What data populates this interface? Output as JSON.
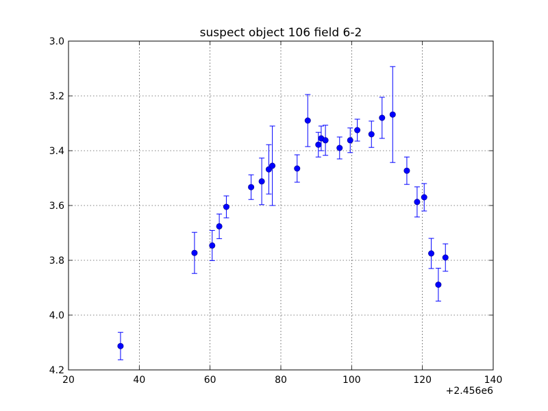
{
  "chart_data": {
    "type": "scatter",
    "title": "suspect object 106 field 6-2",
    "xlabel": "",
    "ylabel": "",
    "x_offset_label": "+2.456e6",
    "xlim": [
      20,
      140
    ],
    "ylim": [
      4.2,
      3.0
    ],
    "y_inverted": true,
    "grid": true,
    "x_ticks": [
      "20",
      "40",
      "60",
      "80",
      "100",
      "120",
      "140"
    ],
    "y_ticks": [
      "3.0",
      "3.2",
      "3.4",
      "3.6",
      "3.8",
      "4.0",
      "4.2"
    ],
    "x_tick_values": [
      20,
      40,
      60,
      80,
      100,
      120,
      140
    ],
    "y_tick_values": [
      3.0,
      3.2,
      3.4,
      3.6,
      3.8,
      4.0,
      4.2
    ],
    "series": [
      {
        "color": "#0000ff",
        "marker": "circle",
        "points": [
          {
            "x": 34.7,
            "y": 4.113,
            "err": 0.05
          },
          {
            "x": 55.6,
            "y": 3.773,
            "err": 0.075
          },
          {
            "x": 60.6,
            "y": 3.746,
            "err": 0.055
          },
          {
            "x": 62.6,
            "y": 3.676,
            "err": 0.045
          },
          {
            "x": 64.6,
            "y": 3.605,
            "err": 0.04
          },
          {
            "x": 71.6,
            "y": 3.533,
            "err": 0.045
          },
          {
            "x": 74.6,
            "y": 3.512,
            "err": 0.085
          },
          {
            "x": 76.6,
            "y": 3.468,
            "err": 0.09
          },
          {
            "x": 77.6,
            "y": 3.455,
            "err": 0.145
          },
          {
            "x": 84.6,
            "y": 3.465,
            "err": 0.05
          },
          {
            "x": 87.6,
            "y": 3.29,
            "err": 0.095
          },
          {
            "x": 90.6,
            "y": 3.378,
            "err": 0.045
          },
          {
            "x": 91.4,
            "y": 3.355,
            "err": 0.045
          },
          {
            "x": 92.6,
            "y": 3.362,
            "err": 0.055
          },
          {
            "x": 96.6,
            "y": 3.39,
            "err": 0.04
          },
          {
            "x": 99.6,
            "y": 3.362,
            "err": 0.045
          },
          {
            "x": 101.6,
            "y": 3.325,
            "err": 0.04
          },
          {
            "x": 105.6,
            "y": 3.34,
            "err": 0.048
          },
          {
            "x": 108.6,
            "y": 3.28,
            "err": 0.075
          },
          {
            "x": 111.6,
            "y": 3.268,
            "err": 0.175
          },
          {
            "x": 115.6,
            "y": 3.473,
            "err": 0.05
          },
          {
            "x": 118.5,
            "y": 3.587,
            "err": 0.055
          },
          {
            "x": 120.5,
            "y": 3.57,
            "err": 0.05
          },
          {
            "x": 122.5,
            "y": 3.775,
            "err": 0.055
          },
          {
            "x": 124.5,
            "y": 3.889,
            "err": 0.06
          },
          {
            "x": 126.5,
            "y": 3.79,
            "err": 0.05
          }
        ]
      }
    ]
  }
}
